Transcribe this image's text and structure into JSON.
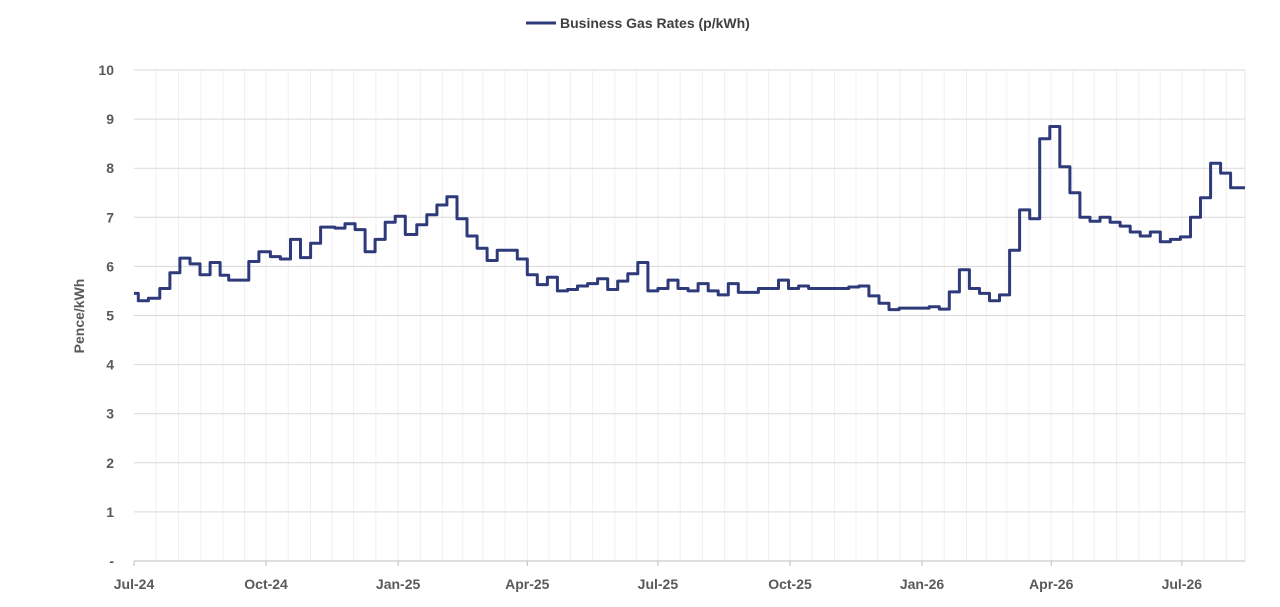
{
  "chart_data": {
    "type": "line",
    "title": "",
    "xlabel": "",
    "ylabel": "Pence/kWh",
    "ylim": [
      0,
      10
    ],
    "y_ticks": [
      "-",
      "1",
      "2",
      "3",
      "4",
      "5",
      "6",
      "7",
      "8",
      "9",
      "10"
    ],
    "x_ticks": [
      "Jul-24",
      "Oct-24",
      "Jan-25",
      "Apr-25",
      "Jul-25",
      "Oct-25",
      "Jan-26",
      "Apr-26",
      "Jul-26"
    ],
    "grid": true,
    "legend_position": "top-center",
    "series_color": "#2E3A7A",
    "series": [
      {
        "name": "Business Gas Rates (p/kWh)",
        "points": [
          [
            "2024-07-01",
            5.45
          ],
          [
            "2024-07-04",
            5.3
          ],
          [
            "2024-07-11",
            5.35
          ],
          [
            "2024-07-19",
            5.55
          ],
          [
            "2024-07-26",
            5.87
          ],
          [
            "2024-08-02",
            6.17
          ],
          [
            "2024-08-09",
            6.05
          ],
          [
            "2024-08-16",
            5.83
          ],
          [
            "2024-08-23",
            6.08
          ],
          [
            "2024-08-30",
            5.82
          ],
          [
            "2024-09-05",
            5.72
          ],
          [
            "2024-09-19",
            6.1
          ],
          [
            "2024-09-26",
            6.3
          ],
          [
            "2024-10-04",
            6.2
          ],
          [
            "2024-10-11",
            6.15
          ],
          [
            "2024-10-18",
            6.55
          ],
          [
            "2024-10-25",
            6.18
          ],
          [
            "2024-11-01",
            6.47
          ],
          [
            "2024-11-08",
            6.8
          ],
          [
            "2024-11-18",
            6.78
          ],
          [
            "2024-11-25",
            6.87
          ],
          [
            "2024-12-02",
            6.75
          ],
          [
            "2024-12-09",
            6.3
          ],
          [
            "2024-12-16",
            6.55
          ],
          [
            "2024-12-23",
            6.9
          ],
          [
            "2024-12-30",
            7.02
          ],
          [
            "2025-01-06",
            6.65
          ],
          [
            "2025-01-14",
            6.85
          ],
          [
            "2025-01-21",
            7.05
          ],
          [
            "2025-01-28",
            7.25
          ],
          [
            "2025-02-04",
            7.42
          ],
          [
            "2025-02-11",
            6.97
          ],
          [
            "2025-02-18",
            6.62
          ],
          [
            "2025-02-25",
            6.37
          ],
          [
            "2025-03-04",
            6.12
          ],
          [
            "2025-03-11",
            6.33
          ],
          [
            "2025-03-25",
            6.15
          ],
          [
            "2025-04-01",
            5.83
          ],
          [
            "2025-04-08",
            5.63
          ],
          [
            "2025-04-15",
            5.78
          ],
          [
            "2025-04-22",
            5.5
          ],
          [
            "2025-04-29",
            5.53
          ],
          [
            "2025-05-06",
            5.6
          ],
          [
            "2025-05-13",
            5.65
          ],
          [
            "2025-05-20",
            5.75
          ],
          [
            "2025-05-27",
            5.53
          ],
          [
            "2025-06-03",
            5.7
          ],
          [
            "2025-06-10",
            5.85
          ],
          [
            "2025-06-17",
            6.08
          ],
          [
            "2025-06-24",
            5.5
          ],
          [
            "2025-07-01",
            5.55
          ],
          [
            "2025-07-08",
            5.72
          ],
          [
            "2025-07-15",
            5.55
          ],
          [
            "2025-07-22",
            5.5
          ],
          [
            "2025-07-29",
            5.65
          ],
          [
            "2025-08-05",
            5.5
          ],
          [
            "2025-08-12",
            5.42
          ],
          [
            "2025-08-19",
            5.65
          ],
          [
            "2025-08-26",
            5.47
          ],
          [
            "2025-09-09",
            5.55
          ],
          [
            "2025-09-23",
            5.72
          ],
          [
            "2025-09-30",
            5.55
          ],
          [
            "2025-10-07",
            5.6
          ],
          [
            "2025-10-14",
            5.55
          ],
          [
            "2025-11-11",
            5.58
          ],
          [
            "2025-11-18",
            5.6
          ],
          [
            "2025-11-25",
            5.4
          ],
          [
            "2025-12-02",
            5.25
          ],
          [
            "2025-12-09",
            5.12
          ],
          [
            "2025-12-16",
            5.15
          ],
          [
            "2025-12-23",
            5.15
          ],
          [
            "2026-01-06",
            5.18
          ],
          [
            "2026-01-13",
            5.13
          ],
          [
            "2026-01-20",
            5.48
          ],
          [
            "2026-01-27",
            5.93
          ],
          [
            "2026-02-03",
            5.55
          ],
          [
            "2026-02-10",
            5.45
          ],
          [
            "2026-02-17",
            5.3
          ],
          [
            "2026-02-24",
            5.42
          ],
          [
            "2026-03-03",
            6.33
          ],
          [
            "2026-03-10",
            7.15
          ],
          [
            "2026-03-17",
            6.97
          ],
          [
            "2026-03-24",
            8.6
          ],
          [
            "2026-03-31",
            8.85
          ],
          [
            "2026-04-07",
            8.03
          ],
          [
            "2026-04-14",
            7.5
          ],
          [
            "2026-04-21",
            7.0
          ],
          [
            "2026-04-28",
            6.92
          ],
          [
            "2026-05-05",
            7.0
          ],
          [
            "2026-05-12",
            6.9
          ],
          [
            "2026-05-19",
            6.82
          ],
          [
            "2026-05-26",
            6.7
          ],
          [
            "2026-06-02",
            6.62
          ],
          [
            "2026-06-09",
            6.7
          ],
          [
            "2026-06-16",
            6.5
          ],
          [
            "2026-06-23",
            6.55
          ],
          [
            "2026-06-30",
            6.6
          ],
          [
            "2026-07-07",
            7.0
          ],
          [
            "2026-07-14",
            7.4
          ],
          [
            "2026-07-21",
            8.1
          ],
          [
            "2026-07-28",
            7.9
          ],
          [
            "2026-08-04",
            7.6
          ],
          [
            "2026-08-14",
            7.6
          ]
        ]
      }
    ]
  }
}
